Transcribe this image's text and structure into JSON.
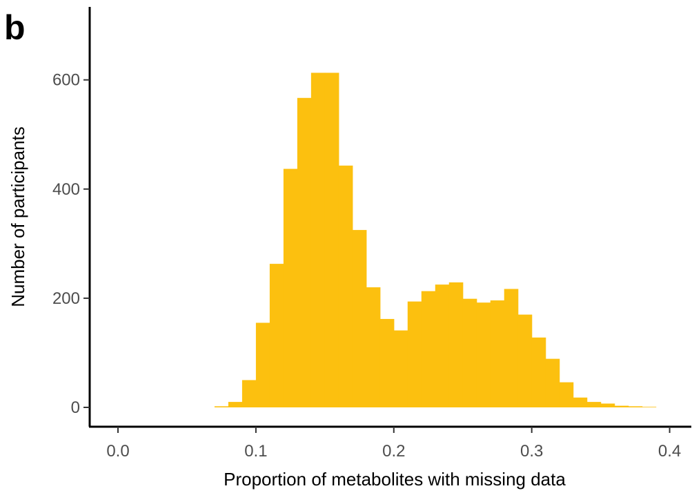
{
  "panel_label": "b",
  "chart_data": {
    "type": "bar",
    "subtype": "histogram",
    "title": "",
    "xlabel": "Proportion of metabolites with missing data",
    "ylabel": "Number of participants",
    "xlim": [
      -0.02,
      0.415
    ],
    "ylim": [
      -33,
      755
    ],
    "x_ticks": [
      0.0,
      0.1,
      0.2,
      0.3,
      0.4
    ],
    "x_tick_labels": [
      "0.0",
      "0.1",
      "0.2",
      "0.3",
      "0.4"
    ],
    "y_ticks": [
      0,
      200,
      400,
      600
    ],
    "y_tick_labels": [
      "0",
      "200",
      "400",
      "600"
    ],
    "bin_width": 0.01,
    "bin_starts": [
      0.07,
      0.08,
      0.09,
      0.1,
      0.11,
      0.12,
      0.13,
      0.14,
      0.15,
      0.16,
      0.17,
      0.18,
      0.19,
      0.2,
      0.21,
      0.22,
      0.23,
      0.24,
      0.25,
      0.26,
      0.27,
      0.28,
      0.29,
      0.3,
      0.31,
      0.32,
      0.33,
      0.34,
      0.35,
      0.36,
      0.37,
      0.38
    ],
    "values": [
      2,
      10,
      50,
      155,
      263,
      437,
      567,
      613,
      613,
      443,
      325,
      220,
      162,
      141,
      194,
      213,
      225,
      229,
      199,
      192,
      196,
      217,
      170,
      128,
      89,
      46,
      18,
      10,
      7,
      3,
      2,
      1
    ],
    "fill_color": "#FCC00F",
    "grid": false,
    "legend": "none"
  }
}
